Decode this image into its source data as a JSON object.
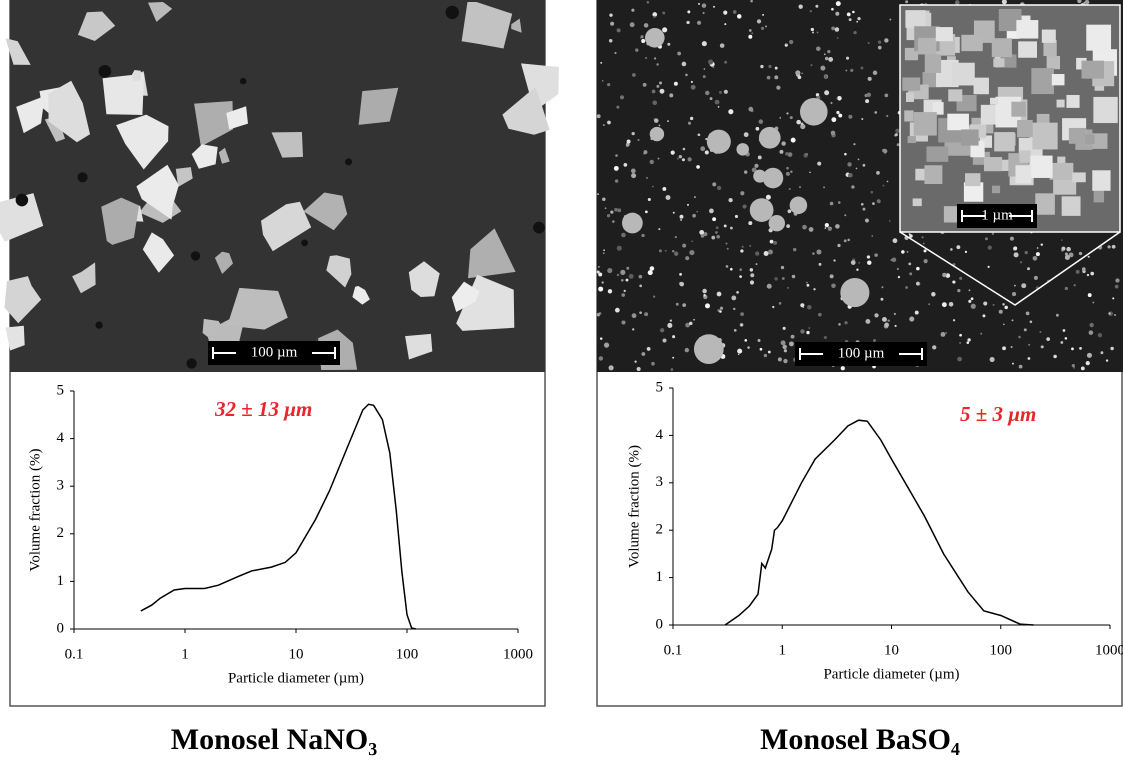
{
  "chart_data": [
    {
      "type": "line",
      "x_label": "Particle diameter (µm)",
      "y_label": "Volume fraction (%)",
      "annotation": "32 ± 13 μm",
      "annotation_color": "#e8262a",
      "log_x": true,
      "x": [
        0.4,
        0.5,
        0.6,
        0.8,
        1,
        1.5,
        2,
        3,
        4,
        6,
        8,
        10,
        15,
        20,
        30,
        40,
        45,
        50,
        60,
        70,
        80,
        90,
        100,
        110,
        120
      ],
      "series": [
        {
          "color": "#000000",
          "values": [
            0.38,
            0.5,
            0.65,
            0.82,
            0.85,
            0.85,
            0.92,
            1.1,
            1.22,
            1.3,
            1.4,
            1.6,
            2.3,
            2.9,
            3.9,
            4.6,
            4.72,
            4.7,
            4.4,
            3.7,
            2.5,
            1.2,
            0.3,
            0.02,
            0
          ]
        }
      ],
      "xlim": [
        0.1,
        1000
      ],
      "xticks": [
        0.1,
        1,
        10,
        100,
        1000
      ],
      "ylim": [
        0,
        5
      ],
      "yticks": [
        0,
        1,
        2,
        3,
        4,
        5
      ]
    },
    {
      "type": "line",
      "x_label": "Particle diameter (µm)",
      "y_label": "Volume fraction (%)",
      "annotation": "5 ± 3 μm",
      "annotation_color": "#e8262a",
      "log_x": true,
      "x": [
        0.3,
        0.4,
        0.5,
        0.6,
        0.65,
        0.7,
        0.8,
        0.85,
        0.9,
        1,
        1.5,
        2,
        3,
        4,
        5,
        6,
        8,
        10,
        15,
        20,
        30,
        50,
        70,
        100,
        150,
        200
      ],
      "series": [
        {
          "color": "#000000",
          "values": [
            0,
            0.2,
            0.4,
            0.65,
            1.3,
            1.2,
            1.6,
            2.0,
            2.05,
            2.2,
            3.0,
            3.5,
            3.9,
            4.2,
            4.32,
            4.3,
            3.9,
            3.5,
            2.8,
            2.3,
            1.5,
            0.7,
            0.3,
            0.2,
            0.02,
            0
          ]
        }
      ],
      "xlim": [
        0.1,
        1000
      ],
      "xticks": [
        0.1,
        1,
        10,
        100,
        1000
      ],
      "ylim": [
        0,
        5
      ],
      "yticks": [
        0,
        1,
        2,
        3,
        4,
        5
      ]
    }
  ],
  "images": [
    {
      "scale_bar": "100 µm"
    },
    {
      "scale_bar": "100 µm",
      "inset_scale_bar": "1 µm"
    }
  ],
  "captions": [
    "Monosel NaNO₃",
    "Monosel BaSO₄"
  ]
}
